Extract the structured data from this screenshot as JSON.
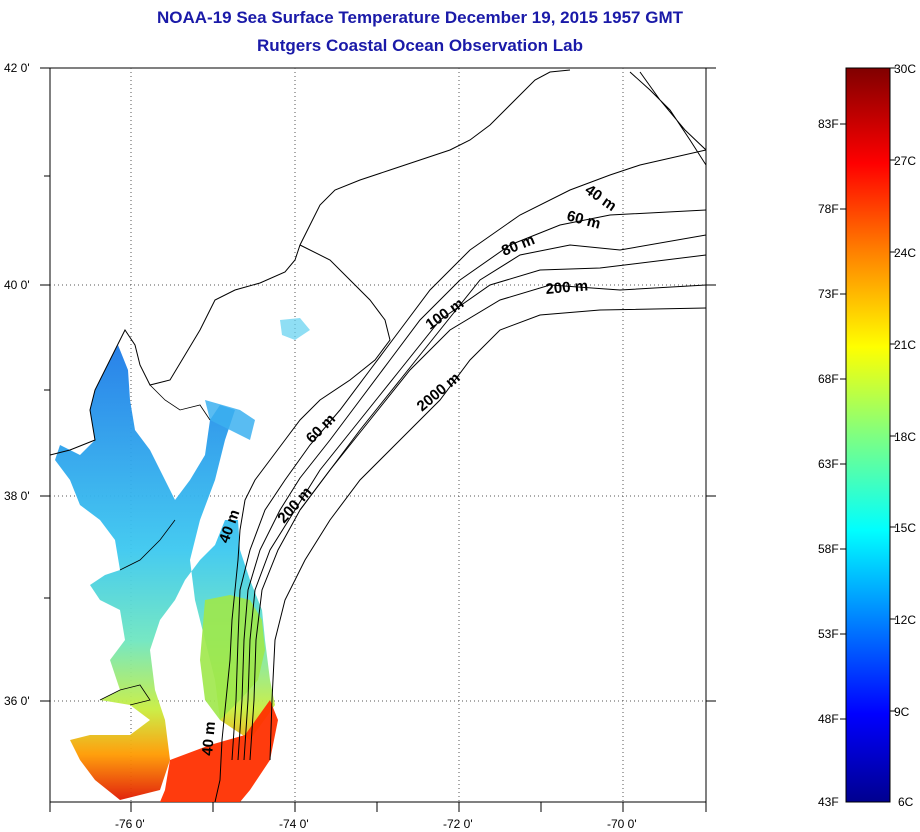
{
  "title": "NOAA-19 Sea Surface Temperature December 19, 2015 1957 GMT",
  "subtitle": "Rutgers Coastal Ocean Observation Lab",
  "map": {
    "lat_labels": [
      "42 0'",
      "40 0'",
      "38 0'",
      "36 0'"
    ],
    "lon_labels": [
      "-76 0'",
      "-74 0'",
      "-72 0'",
      "-70 0'"
    ],
    "lat_range": [
      35,
      42
    ],
    "lon_range": [
      -77,
      -69
    ],
    "contour_labels": [
      "40 m",
      "60 m",
      "80 m",
      "200 m",
      "100 m",
      "2000 m",
      "60 m",
      "200 m",
      "40 m",
      "40 m"
    ]
  },
  "colorbar": {
    "fahrenheit_labels": [
      "83F",
      "78F",
      "73F",
      "68F",
      "63F",
      "58F",
      "53F",
      "48F",
      "43F"
    ],
    "celsius_labels": [
      "30C",
      "27C",
      "24C",
      "21C",
      "18C",
      "15C",
      "12C",
      "9C",
      "6C"
    ],
    "range_c": [
      6,
      30
    ],
    "range_f": [
      43,
      86
    ],
    "colors": [
      "#00008f",
      "#0000ff",
      "#0080ff",
      "#00ffff",
      "#80ff80",
      "#ffff00",
      "#ff8000",
      "#ff0000",
      "#800000"
    ]
  }
}
